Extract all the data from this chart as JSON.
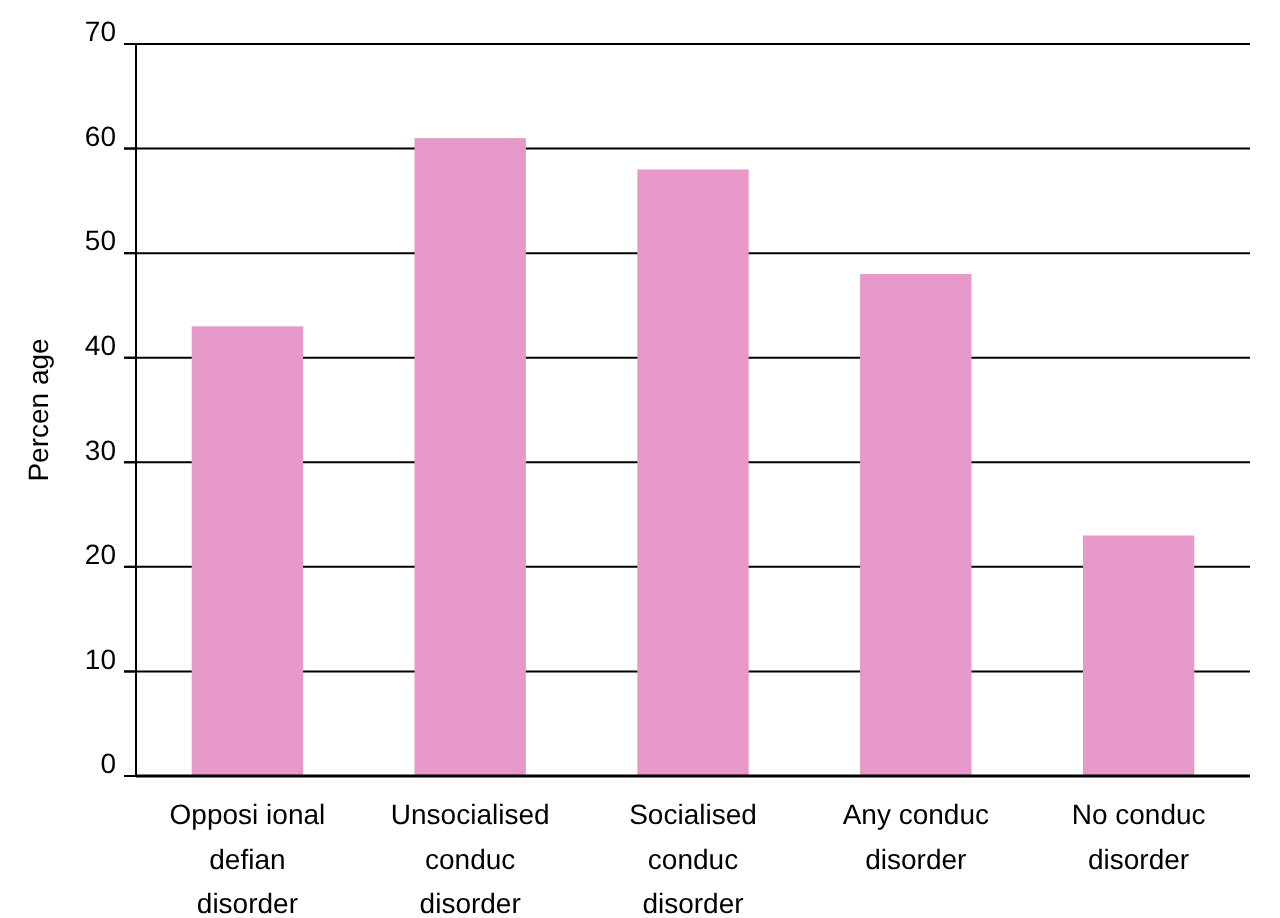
{
  "chart_data": {
    "type": "bar",
    "ylabel": "Percen age",
    "categories": [
      "Opposi ional defian disorder",
      "Unsocialised conduc disorder",
      "Socialised conduc disorder",
      "Any conduc disorder",
      "No conduc disorder"
    ],
    "values": [
      43,
      61,
      58,
      48,
      23
    ],
    "color": "#e699c8",
    "ylim": [
      0,
      70
    ],
    "yticks": [
      0,
      10,
      20,
      30,
      40,
      50,
      60,
      70
    ],
    "grid": "y"
  }
}
